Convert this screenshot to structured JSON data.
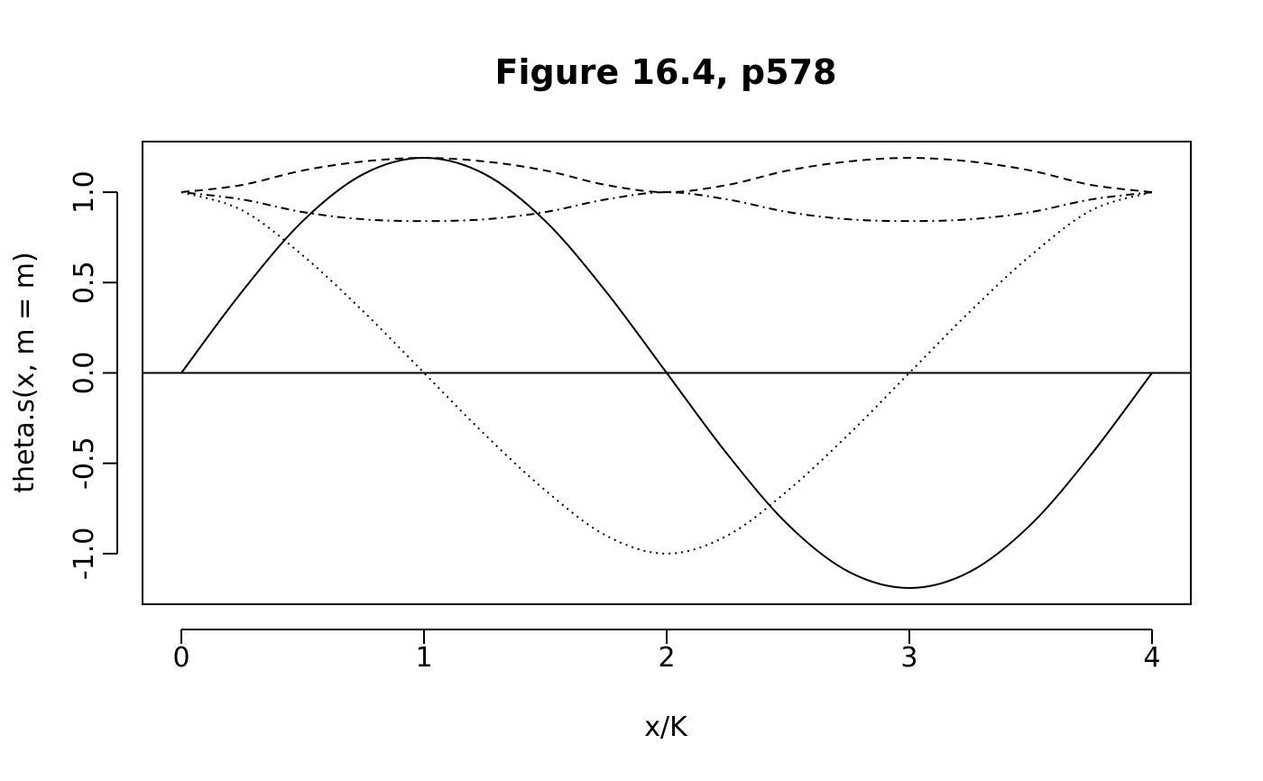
{
  "chart_data": {
    "type": "line",
    "title": "Figure 16.4, p578",
    "xlabel": "x/K",
    "ylabel": "theta.s(x, m = m)",
    "xlim": [
      -0.16,
      4.16
    ],
    "ylim": [
      -1.28,
      1.28
    ],
    "xticks": [
      0,
      1,
      2,
      3,
      4
    ],
    "xtick_labels": [
      "0",
      "1",
      "2",
      "3",
      "4"
    ],
    "yticks": [
      -1.0,
      -0.5,
      0.0,
      0.5,
      1.0
    ],
    "ytick_labels": [
      "-1.0",
      "-0.5",
      "0.0",
      "0.5",
      "1.0"
    ],
    "grid": false,
    "reference_line": {
      "y": 0
    },
    "series": [
      {
        "linestyle": "solid",
        "x": [
          0,
          0.25,
          0.5,
          0.75,
          1.0,
          1.25,
          1.5,
          1.75,
          2.0,
          2.25,
          2.5,
          2.75,
          3.0,
          3.25,
          3.5,
          3.75,
          4.0
        ],
        "y": [
          0,
          0.45,
          0.84,
          1.1,
          1.19,
          1.1,
          0.84,
          0.45,
          0,
          -0.45,
          -0.84,
          -1.1,
          -1.19,
          -1.1,
          -0.84,
          -0.45,
          0
        ]
      },
      {
        "linestyle": "dotted",
        "x": [
          0,
          0.25,
          0.5,
          0.75,
          1.0,
          1.25,
          1.5,
          1.75,
          2.0,
          2.25,
          2.5,
          2.75,
          3.0,
          3.25,
          3.5,
          3.75,
          4.0
        ],
        "y": [
          1.0,
          0.9,
          0.65,
          0.34,
          0,
          -0.34,
          -0.65,
          -0.9,
          -1.0,
          -0.9,
          -0.65,
          -0.34,
          0,
          0.34,
          0.65,
          0.9,
          1.0
        ]
      },
      {
        "linestyle": "dashed",
        "x": [
          0,
          0.25,
          0.5,
          0.75,
          1.0,
          1.25,
          1.5,
          1.75,
          2.0,
          2.25,
          2.5,
          2.75,
          3.0,
          3.25,
          3.5,
          3.75,
          4.0
        ],
        "y": [
          1.0,
          1.04,
          1.12,
          1.17,
          1.19,
          1.17,
          1.12,
          1.04,
          1.0,
          1.04,
          1.12,
          1.17,
          1.19,
          1.17,
          1.12,
          1.04,
          1.0
        ]
      },
      {
        "linestyle": "dotdash",
        "x": [
          0,
          0.25,
          0.5,
          0.75,
          1.0,
          1.25,
          1.5,
          1.75,
          2.0,
          2.25,
          2.5,
          2.75,
          3.0,
          3.25,
          3.5,
          3.75,
          4.0
        ],
        "y": [
          1.0,
          0.96,
          0.89,
          0.85,
          0.84,
          0.85,
          0.89,
          0.96,
          1.0,
          0.96,
          0.89,
          0.85,
          0.84,
          0.85,
          0.89,
          0.96,
          1.0
        ]
      }
    ]
  }
}
